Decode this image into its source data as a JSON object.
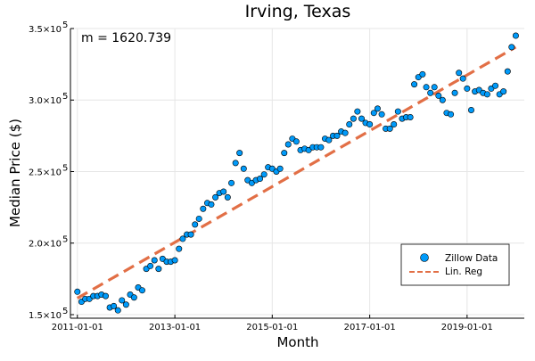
{
  "chart_data": {
    "type": "scatter",
    "title": "Irving, Texas",
    "xlabel": "Month",
    "ylabel": "Median Price ($)",
    "annotation": "m = 1620.739",
    "x_ticks": [
      "2011-01-01",
      "2013-01-01",
      "2015-01-01",
      "2017-01-01",
      "2019-01-01"
    ],
    "y_ticks": [
      {
        "value": 150000,
        "mantissa": "1.5×10",
        "exponent": "5"
      },
      {
        "value": 200000,
        "mantissa": "2.0×10",
        "exponent": "5"
      },
      {
        "value": 250000,
        "mantissa": "2.5×10",
        "exponent": "5"
      },
      {
        "value": 300000,
        "mantissa": "3.0×10",
        "exponent": "5"
      },
      {
        "value": 350000,
        "mantissa": "3.5×10",
        "exponent": "5"
      }
    ],
    "xlim": [
      "2010-11-10",
      "2020-03-05"
    ],
    "ylim": [
      147500,
      350000
    ],
    "grid": true,
    "legend_position": "bottom-right",
    "series": [
      {
        "name": "Zillow Data",
        "kind": "scatter",
        "color": "#009af9",
        "points": [
          [
            "2011-01-01",
            166000
          ],
          [
            "2011-02-01",
            159000
          ],
          [
            "2011-03-01",
            161000
          ],
          [
            "2011-04-01",
            161000
          ],
          [
            "2011-05-01",
            163000
          ],
          [
            "2011-06-01",
            163000
          ],
          [
            "2011-07-01",
            164000
          ],
          [
            "2011-08-01",
            163000
          ],
          [
            "2011-09-01",
            155000
          ],
          [
            "2011-10-01",
            156000
          ],
          [
            "2011-11-01",
            153000
          ],
          [
            "2011-12-01",
            160000
          ],
          [
            "2012-01-01",
            157000
          ],
          [
            "2012-02-01",
            164000
          ],
          [
            "2012-03-01",
            162000
          ],
          [
            "2012-04-01",
            169000
          ],
          [
            "2012-05-01",
            167000
          ],
          [
            "2012-06-01",
            182000
          ],
          [
            "2012-07-01",
            184000
          ],
          [
            "2012-08-01",
            188000
          ],
          [
            "2012-09-01",
            182000
          ],
          [
            "2012-10-01",
            189000
          ],
          [
            "2012-11-01",
            187000
          ],
          [
            "2012-12-01",
            187000
          ],
          [
            "2013-01-01",
            188000
          ],
          [
            "2013-02-01",
            196000
          ],
          [
            "2013-03-01",
            203000
          ],
          [
            "2013-04-01",
            206000
          ],
          [
            "2013-05-01",
            206000
          ],
          [
            "2013-06-01",
            213000
          ],
          [
            "2013-07-01",
            217000
          ],
          [
            "2013-08-01",
            224000
          ],
          [
            "2013-09-01",
            228000
          ],
          [
            "2013-10-01",
            227000
          ],
          [
            "2013-11-01",
            232000
          ],
          [
            "2013-12-01",
            235000
          ],
          [
            "2014-01-01",
            236000
          ],
          [
            "2014-02-01",
            232000
          ],
          [
            "2014-03-01",
            242000
          ],
          [
            "2014-04-01",
            256000
          ],
          [
            "2014-05-01",
            263000
          ],
          [
            "2014-06-01",
            252000
          ],
          [
            "2014-07-01",
            244000
          ],
          [
            "2014-08-01",
            242000
          ],
          [
            "2014-09-01",
            244000
          ],
          [
            "2014-10-01",
            245000
          ],
          [
            "2014-11-01",
            248000
          ],
          [
            "2014-12-01",
            253000
          ],
          [
            "2015-01-01",
            252000
          ],
          [
            "2015-02-01",
            250000
          ],
          [
            "2015-03-01",
            252000
          ],
          [
            "2015-04-01",
            263000
          ],
          [
            "2015-05-01",
            269000
          ],
          [
            "2015-06-01",
            273000
          ],
          [
            "2015-07-01",
            271000
          ],
          [
            "2015-08-01",
            265000
          ],
          [
            "2015-09-01",
            266000
          ],
          [
            "2015-10-01",
            265000
          ],
          [
            "2015-11-01",
            267000
          ],
          [
            "2015-12-01",
            267000
          ],
          [
            "2016-01-01",
            267000
          ],
          [
            "2016-02-01",
            273000
          ],
          [
            "2016-03-01",
            272000
          ],
          [
            "2016-04-01",
            275000
          ],
          [
            "2016-05-01",
            275000
          ],
          [
            "2016-06-01",
            278000
          ],
          [
            "2016-07-01",
            277000
          ],
          [
            "2016-08-01",
            283000
          ],
          [
            "2016-09-01",
            287000
          ],
          [
            "2016-10-01",
            292000
          ],
          [
            "2016-11-01",
            287000
          ],
          [
            "2016-12-01",
            284000
          ],
          [
            "2017-01-01",
            283000
          ],
          [
            "2017-02-01",
            291000
          ],
          [
            "2017-03-01",
            294000
          ],
          [
            "2017-04-01",
            290000
          ],
          [
            "2017-05-01",
            280000
          ],
          [
            "2017-06-01",
            280000
          ],
          [
            "2017-07-01",
            283000
          ],
          [
            "2017-08-01",
            292000
          ],
          [
            "2017-09-01",
            287000
          ],
          [
            "2017-10-01",
            288000
          ],
          [
            "2017-11-01",
            288000
          ],
          [
            "2017-12-01",
            311000
          ],
          [
            "2018-01-01",
            316000
          ],
          [
            "2018-02-01",
            318000
          ],
          [
            "2018-03-01",
            309000
          ],
          [
            "2018-04-01",
            305000
          ],
          [
            "2018-05-01",
            309000
          ],
          [
            "2018-06-01",
            303000
          ],
          [
            "2018-07-01",
            300000
          ],
          [
            "2018-08-01",
            291000
          ],
          [
            "2018-09-01",
            290000
          ],
          [
            "2018-10-01",
            305000
          ],
          [
            "2018-11-01",
            319000
          ],
          [
            "2018-12-01",
            315000
          ],
          [
            "2019-01-01",
            308000
          ],
          [
            "2019-02-01",
            293000
          ],
          [
            "2019-03-01",
            306000
          ],
          [
            "2019-04-01",
            307000
          ],
          [
            "2019-05-01",
            305000
          ],
          [
            "2019-06-01",
            304000
          ],
          [
            "2019-07-01",
            308000
          ],
          [
            "2019-08-01",
            310000
          ],
          [
            "2019-09-01",
            304000
          ],
          [
            "2019-10-01",
            306000
          ],
          [
            "2019-11-01",
            320000
          ],
          [
            "2019-12-01",
            337000
          ],
          [
            "2020-01-01",
            345000
          ]
        ]
      },
      {
        "name": "Lin. Reg",
        "kind": "dashed-line",
        "color": "#e26f46",
        "points": [
          [
            "2011-01-01",
            161500
          ],
          [
            "2020-01-01",
            337000
          ]
        ]
      }
    ]
  }
}
